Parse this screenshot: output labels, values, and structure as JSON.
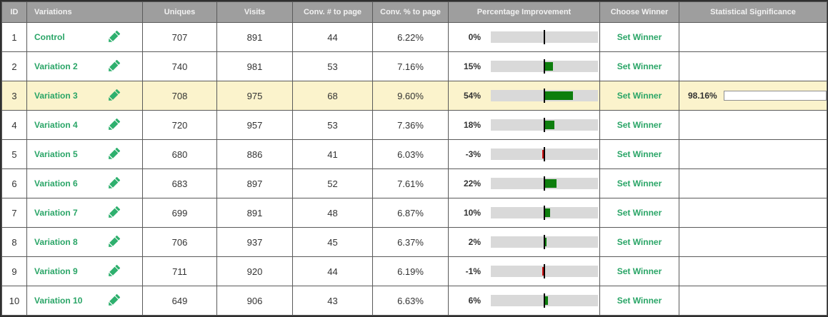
{
  "table": {
    "headers": {
      "id": "ID",
      "variations": "Variations",
      "uniques": "Uniques",
      "visits": "Visits",
      "conv_num": "Conv. # to page",
      "conv_pct": "Conv. % to page",
      "improvement": "Percentage Improvement",
      "choose_winner": "Choose Winner",
      "significance": "Statistical Significance"
    },
    "set_winner_label": "Set Winner",
    "colors": {
      "accent_green_text": "#2aa567",
      "pencil_green": "#2eb06e",
      "improvement_bar_green": "#0d7e0d",
      "improvement_bar_red": "#cc1111",
      "significance_bar_green": "#74c171",
      "highlight_row_yellow": "#fbf3cc",
      "header_gray": "#9e9e9e",
      "bar_track_gray": "#d9d9d9"
    },
    "rows": [
      {
        "id": "1",
        "name": "Control",
        "uniques": "707",
        "visits": "891",
        "conv_num": "44",
        "conv_pct": "6.22%",
        "improvement_label": "0%",
        "improvement_value": 0,
        "significance_label": "",
        "significance_value": null,
        "highlighted": false
      },
      {
        "id": "2",
        "name": "Variation 2",
        "uniques": "740",
        "visits": "981",
        "conv_num": "53",
        "conv_pct": "7.16%",
        "improvement_label": "15%",
        "improvement_value": 15,
        "significance_label": "",
        "significance_value": null,
        "highlighted": false
      },
      {
        "id": "3",
        "name": "Variation 3",
        "uniques": "708",
        "visits": "975",
        "conv_num": "68",
        "conv_pct": "9.60%",
        "improvement_label": "54%",
        "improvement_value": 54,
        "significance_label": "98.16%",
        "significance_value": 98.16,
        "highlighted": true
      },
      {
        "id": "4",
        "name": "Variation 4",
        "uniques": "720",
        "visits": "957",
        "conv_num": "53",
        "conv_pct": "7.36%",
        "improvement_label": "18%",
        "improvement_value": 18,
        "significance_label": "",
        "significance_value": null,
        "highlighted": false
      },
      {
        "id": "5",
        "name": "Variation 5",
        "uniques": "680",
        "visits": "886",
        "conv_num": "41",
        "conv_pct": "6.03%",
        "improvement_label": "-3%",
        "improvement_value": -3,
        "significance_label": "",
        "significance_value": null,
        "highlighted": false
      },
      {
        "id": "6",
        "name": "Variation 6",
        "uniques": "683",
        "visits": "897",
        "conv_num": "52",
        "conv_pct": "7.61%",
        "improvement_label": "22%",
        "improvement_value": 22,
        "significance_label": "",
        "significance_value": null,
        "highlighted": false
      },
      {
        "id": "7",
        "name": "Variation 7",
        "uniques": "699",
        "visits": "891",
        "conv_num": "48",
        "conv_pct": "6.87%",
        "improvement_label": "10%",
        "improvement_value": 10,
        "significance_label": "",
        "significance_value": null,
        "highlighted": false
      },
      {
        "id": "8",
        "name": "Variation 8",
        "uniques": "706",
        "visits": "937",
        "conv_num": "45",
        "conv_pct": "6.37%",
        "improvement_label": "2%",
        "improvement_value": 2,
        "significance_label": "",
        "significance_value": null,
        "highlighted": false
      },
      {
        "id": "9",
        "name": "Variation 9",
        "uniques": "711",
        "visits": "920",
        "conv_num": "44",
        "conv_pct": "6.19%",
        "improvement_label": "-1%",
        "improvement_value": -1,
        "significance_label": "",
        "significance_value": null,
        "highlighted": false
      },
      {
        "id": "10",
        "name": "Variation 10",
        "uniques": "649",
        "visits": "906",
        "conv_num": "43",
        "conv_pct": "6.63%",
        "improvement_label": "6%",
        "improvement_value": 6,
        "significance_label": "",
        "significance_value": null,
        "highlighted": false
      }
    ]
  }
}
